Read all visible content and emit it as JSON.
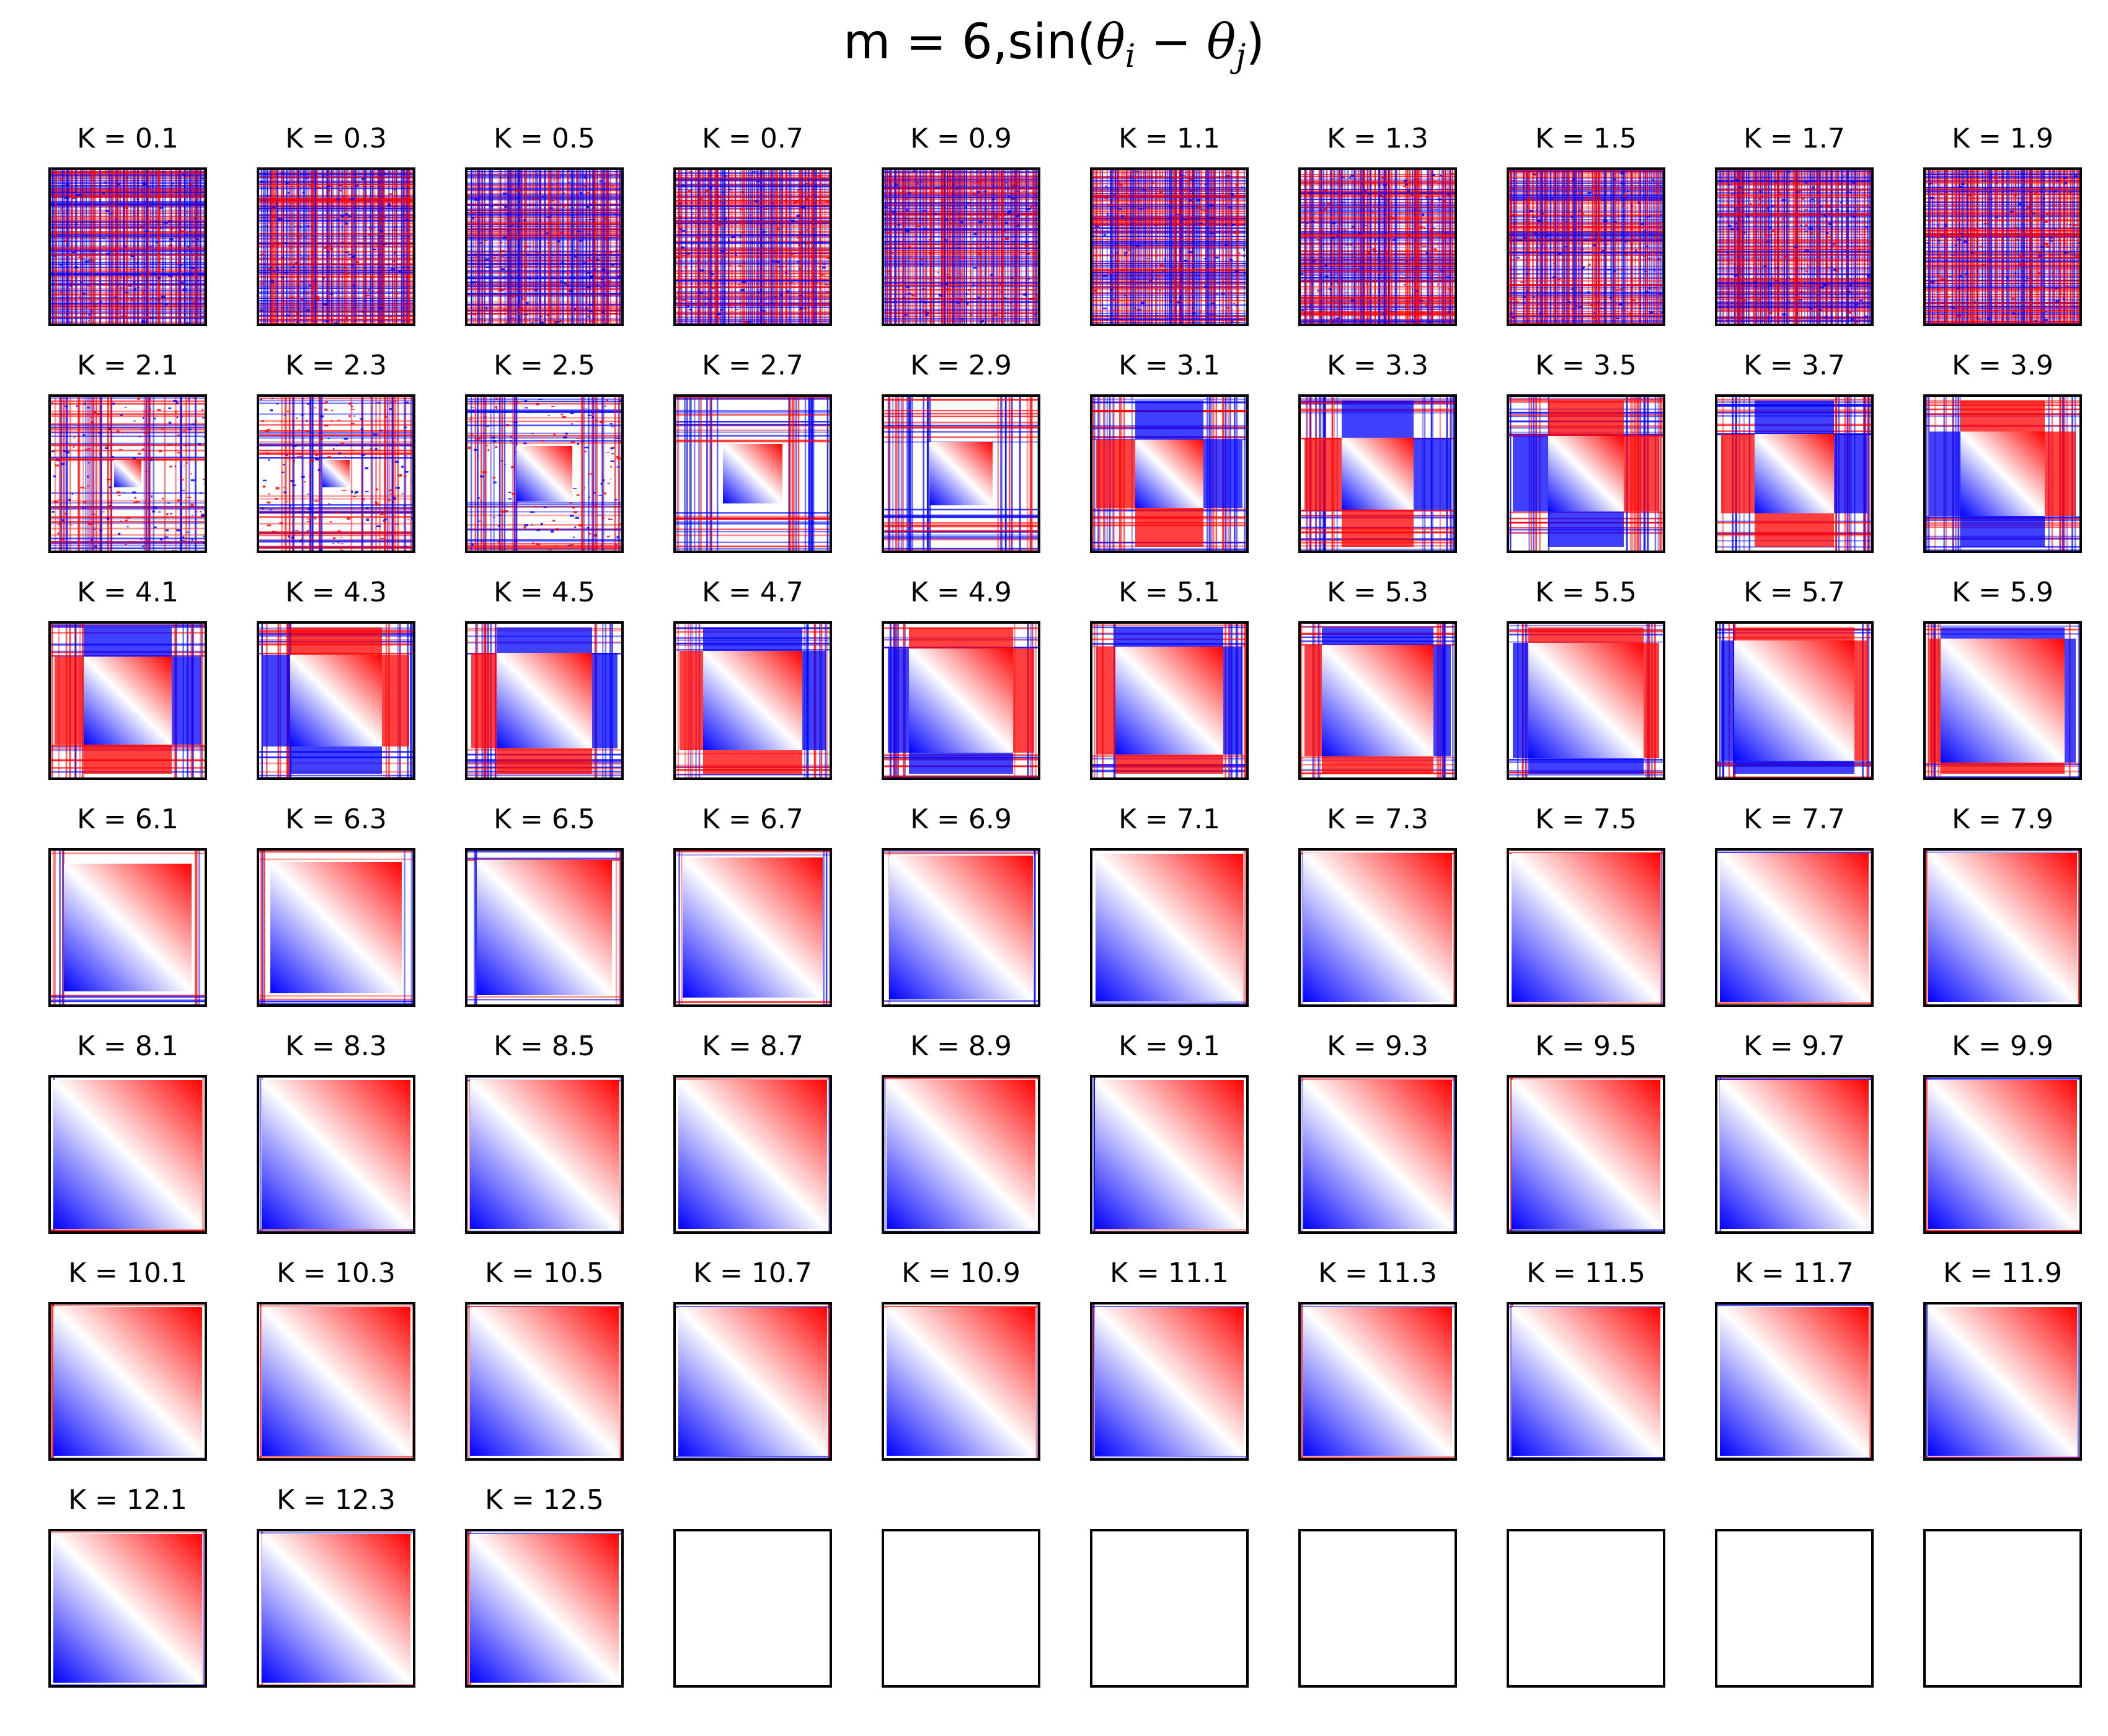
{
  "figure": {
    "title_prefix": "m = 6,sin(",
    "title_theta_1": "θ",
    "title_sub_1": "i",
    "title_minus": " − ",
    "title_theta_2": "θ",
    "title_sub_2": "j",
    "title_suffix": ")"
  },
  "chart_data": {
    "type": "heatmap",
    "title": "m = 6,sin(θi − θj)",
    "layout": {
      "rows": 7,
      "cols": 10
    },
    "colormap": "bwr",
    "colors": {
      "negative": "#0000ff",
      "zero": "#ffffff",
      "positive": "#ff0000",
      "axes_edge": "#000000"
    },
    "panels": [
      {
        "title": "K = 0.1",
        "K": 0.1
      },
      {
        "title": "K = 0.3",
        "K": 0.3
      },
      {
        "title": "K = 0.5",
        "K": 0.5
      },
      {
        "title": "K = 0.7",
        "K": 0.7
      },
      {
        "title": "K = 0.9",
        "K": 0.9
      },
      {
        "title": "K = 1.1",
        "K": 1.1
      },
      {
        "title": "K = 1.3",
        "K": 1.3
      },
      {
        "title": "K = 1.5",
        "K": 1.5
      },
      {
        "title": "K = 1.7",
        "K": 1.7
      },
      {
        "title": "K = 1.9",
        "K": 1.9
      },
      {
        "title": "K = 2.1",
        "K": 2.1
      },
      {
        "title": "K = 2.3",
        "K": 2.3
      },
      {
        "title": "K = 2.5",
        "K": 2.5
      },
      {
        "title": "K = 2.7",
        "K": 2.7
      },
      {
        "title": "K = 2.9",
        "K": 2.9
      },
      {
        "title": "K = 3.1",
        "K": 3.1
      },
      {
        "title": "K = 3.3",
        "K": 3.3
      },
      {
        "title": "K = 3.5",
        "K": 3.5
      },
      {
        "title": "K = 3.7",
        "K": 3.7
      },
      {
        "title": "K = 3.9",
        "K": 3.9
      },
      {
        "title": "K = 4.1",
        "K": 4.1
      },
      {
        "title": "K = 4.3",
        "K": 4.3
      },
      {
        "title": "K = 4.5",
        "K": 4.5
      },
      {
        "title": "K = 4.7",
        "K": 4.7
      },
      {
        "title": "K = 4.9",
        "K": 4.9
      },
      {
        "title": "K = 5.1",
        "K": 5.1
      },
      {
        "title": "K = 5.3",
        "K": 5.3
      },
      {
        "title": "K = 5.5",
        "K": 5.5
      },
      {
        "title": "K = 5.7",
        "K": 5.7
      },
      {
        "title": "K = 5.9",
        "K": 5.9
      },
      {
        "title": "K = 6.1",
        "K": 6.1
      },
      {
        "title": "K = 6.3",
        "K": 6.3
      },
      {
        "title": "K = 6.5",
        "K": 6.5
      },
      {
        "title": "K = 6.7",
        "K": 6.7
      },
      {
        "title": "K = 6.9",
        "K": 6.9
      },
      {
        "title": "K = 7.1",
        "K": 7.1
      },
      {
        "title": "K = 7.3",
        "K": 7.3
      },
      {
        "title": "K = 7.5",
        "K": 7.5
      },
      {
        "title": "K = 7.7",
        "K": 7.7
      },
      {
        "title": "K = 7.9",
        "K": 7.9
      },
      {
        "title": "K = 8.1",
        "K": 8.1
      },
      {
        "title": "K = 8.3",
        "K": 8.3
      },
      {
        "title": "K = 8.5",
        "K": 8.5
      },
      {
        "title": "K = 8.7",
        "K": 8.7
      },
      {
        "title": "K = 8.9",
        "K": 8.9
      },
      {
        "title": "K = 9.1",
        "K": 9.1
      },
      {
        "title": "K = 9.3",
        "K": 9.3
      },
      {
        "title": "K = 9.5",
        "K": 9.5
      },
      {
        "title": "K = 9.7",
        "K": 9.7
      },
      {
        "title": "K = 9.9",
        "K": 9.9
      },
      {
        "title": "K = 10.1",
        "K": 10.1
      },
      {
        "title": "K = 10.3",
        "K": 10.3
      },
      {
        "title": "K = 10.5",
        "K": 10.5
      },
      {
        "title": "K = 10.7",
        "K": 10.7
      },
      {
        "title": "K = 10.9",
        "K": 10.9
      },
      {
        "title": "K = 11.1",
        "K": 11.1
      },
      {
        "title": "K = 11.3",
        "K": 11.3
      },
      {
        "title": "K = 11.5",
        "K": 11.5
      },
      {
        "title": "K = 11.7",
        "K": 11.7
      },
      {
        "title": "K = 11.9",
        "K": 11.9
      },
      {
        "title": "K = 12.1",
        "K": 12.1
      },
      {
        "title": "K = 12.3",
        "K": 12.3
      },
      {
        "title": "K = 12.5",
        "K": 12.5
      },
      {
        "title": "",
        "K": null
      },
      {
        "title": "",
        "K": null
      },
      {
        "title": "",
        "K": null
      },
      {
        "title": "",
        "K": null
      },
      {
        "title": "",
        "K": null
      },
      {
        "title": "",
        "K": null
      },
      {
        "title": "",
        "K": null
      }
    ]
  }
}
